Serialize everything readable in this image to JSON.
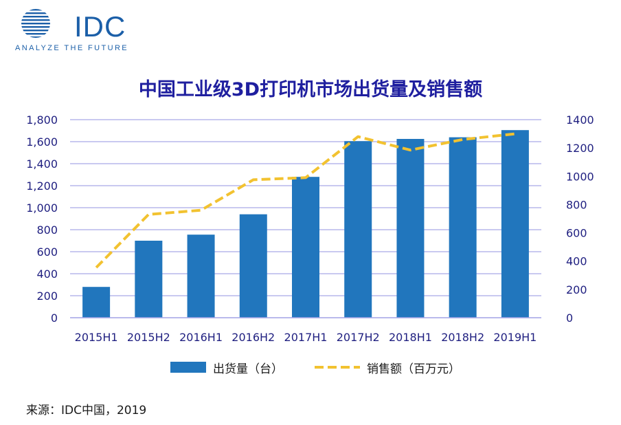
{
  "logo": {
    "text": "IDC",
    "tagline": "ANALYZE THE FUTURE",
    "icon": "idc-globe-icon",
    "color": "#1b5fa8"
  },
  "chart_data": {
    "type": "bar",
    "title": "中国工业级3D打印机市场出货量及销售额",
    "categories": [
      "2015H1",
      "2015H2",
      "2016H1",
      "2016H2",
      "2017H1",
      "2017H2",
      "2018H1",
      "2018H2",
      "2019H1"
    ],
    "series": [
      {
        "name": "出货量（台）",
        "type": "bar",
        "axis": "left",
        "color": "#2176bd",
        "values": [
          280,
          700,
          755,
          940,
          1280,
          1605,
          1625,
          1640,
          1705
        ]
      },
      {
        "name": "销售额（百万元）",
        "type": "line",
        "style": "dashed",
        "axis": "right",
        "color": "#f2c230",
        "values": [
          355,
          730,
          760,
          975,
          990,
          1280,
          1185,
          1260,
          1300
        ]
      }
    ],
    "y_left": {
      "ylim": [
        0,
        1800
      ],
      "ticks": [
        0,
        200,
        400,
        600,
        800,
        1000,
        1200,
        1400,
        1600,
        1800
      ],
      "tick_labels": [
        "0",
        "200",
        "400",
        "600",
        "800",
        "1,000",
        "1,200",
        "1,400",
        "1,600",
        "1,800"
      ]
    },
    "y_right": {
      "ylim": [
        0,
        1400
      ],
      "ticks": [
        0,
        200,
        400,
        600,
        800,
        1000,
        1200,
        1400
      ],
      "tick_labels": [
        "0",
        "200",
        "400",
        "600",
        "800",
        "1000",
        "1200",
        "1400"
      ]
    },
    "grid": true,
    "legend_position": "bottom"
  },
  "source": "来源：IDC中国，2019"
}
